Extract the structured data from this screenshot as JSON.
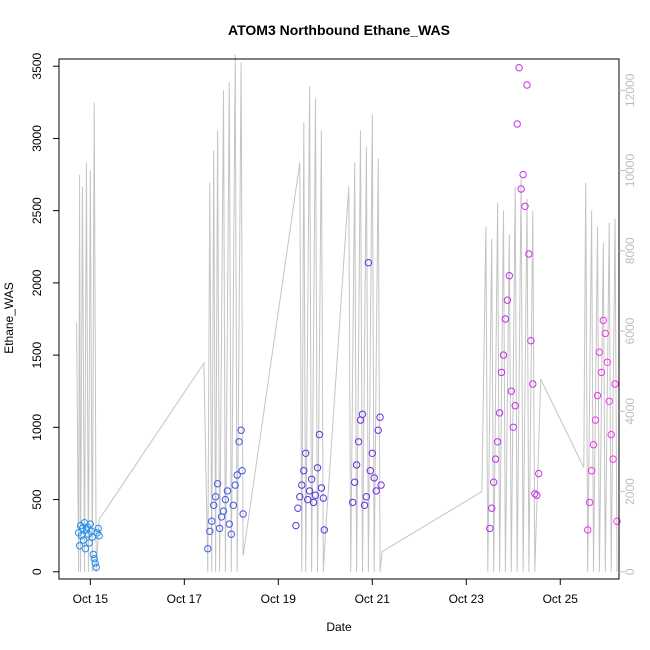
{
  "chart_data": {
    "type": "scatter",
    "title": "ATOM3 Northbound Ethane_WAS",
    "xlabel": "Date",
    "ylabel": "Ethane_WAS",
    "x_ticks": [
      "Oct 15",
      "Oct 17",
      "Oct 19",
      "Oct 21",
      "Oct 23",
      "Oct 25"
    ],
    "x_range": [
      "2017-10-14 08:00",
      "2017-10-26 06:00"
    ],
    "y_ticks": [
      0,
      500,
      1000,
      1500,
      2000,
      2500,
      3000,
      3500
    ],
    "ylim": [
      -50,
      3550
    ],
    "y2_ticks": [
      0,
      2000,
      4000,
      6000,
      8000,
      10000,
      12000
    ],
    "y2lim": [
      -180,
      12780
    ],
    "colors": {
      "start": "#1e9bf0",
      "mid": "#5a2be0",
      "end": "#ff33ee",
      "altitude_line": "#c4c4c4"
    },
    "series": [
      {
        "values": [
          [
            "2017-10-14 18:00",
            270
          ],
          [
            "2017-10-14 18:30",
            180
          ],
          [
            "2017-10-14 19:00",
            320
          ],
          [
            "2017-10-14 19:30",
            250
          ],
          [
            "2017-10-14 20:00",
            300
          ],
          [
            "2017-10-14 20:30",
            220
          ],
          [
            "2017-10-14 21:00",
            340
          ],
          [
            "2017-10-14 21:30",
            160
          ],
          [
            "2017-10-14 22:00",
            290
          ],
          [
            "2017-10-14 22:30",
            310
          ],
          [
            "2017-10-14 23:00",
            260
          ],
          [
            "2017-10-14 23:30",
            200
          ],
          [
            "2017-10-15 00:00",
            330
          ],
          [
            "2017-10-15 00:30",
            280
          ],
          [
            "2017-10-15 01:00",
            240
          ],
          [
            "2017-10-15 01:30",
            120
          ],
          [
            "2017-10-15 02:00",
            90
          ],
          [
            "2017-10-15 02:30",
            60
          ],
          [
            "2017-10-15 03:00",
            30
          ],
          [
            "2017-10-15 03:30",
            270
          ],
          [
            "2017-10-15 04:00",
            300
          ],
          [
            "2017-10-15 04:30",
            250
          ],
          [
            "2017-10-17 12:00",
            160
          ],
          [
            "2017-10-17 13:00",
            280
          ],
          [
            "2017-10-17 14:00",
            350
          ],
          [
            "2017-10-17 15:00",
            460
          ],
          [
            "2017-10-17 16:00",
            520
          ],
          [
            "2017-10-17 17:00",
            610
          ],
          [
            "2017-10-17 18:00",
            300
          ],
          [
            "2017-10-17 19:00",
            380
          ],
          [
            "2017-10-17 20:00",
            420
          ],
          [
            "2017-10-17 21:00",
            500
          ],
          [
            "2017-10-17 22:00",
            560
          ],
          [
            "2017-10-17 23:00",
            330
          ],
          [
            "2017-10-18 00:00",
            260
          ],
          [
            "2017-10-18 01:00",
            460
          ],
          [
            "2017-10-18 02:00",
            600
          ],
          [
            "2017-10-18 03:00",
            670
          ],
          [
            "2017-10-18 04:00",
            900
          ],
          [
            "2017-10-18 05:00",
            980
          ],
          [
            "2017-10-18 05:30",
            700
          ],
          [
            "2017-10-18 06:00",
            400
          ],
          [
            "2017-10-19 09:00",
            320
          ],
          [
            "2017-10-19 10:00",
            440
          ],
          [
            "2017-10-19 11:00",
            520
          ],
          [
            "2017-10-19 12:00",
            600
          ],
          [
            "2017-10-19 13:00",
            700
          ],
          [
            "2017-10-19 14:00",
            820
          ],
          [
            "2017-10-19 15:00",
            500
          ],
          [
            "2017-10-19 16:00",
            560
          ],
          [
            "2017-10-19 17:00",
            640
          ],
          [
            "2017-10-19 18:00",
            480
          ],
          [
            "2017-10-19 19:00",
            530
          ],
          [
            "2017-10-19 20:00",
            720
          ],
          [
            "2017-10-19 21:00",
            950
          ],
          [
            "2017-10-19 22:00",
            580
          ],
          [
            "2017-10-19 23:00",
            510
          ],
          [
            "2017-10-19 23:30",
            290
          ],
          [
            "2017-10-20 14:00",
            480
          ],
          [
            "2017-10-20 15:00",
            620
          ],
          [
            "2017-10-20 16:00",
            740
          ],
          [
            "2017-10-20 17:00",
            900
          ],
          [
            "2017-10-20 18:00",
            1050
          ],
          [
            "2017-10-20 19:00",
            1090
          ],
          [
            "2017-10-20 20:00",
            460
          ],
          [
            "2017-10-20 21:00",
            520
          ],
          [
            "2017-10-20 22:00",
            2140
          ],
          [
            "2017-10-20 23:00",
            700
          ],
          [
            "2017-10-21 00:00",
            820
          ],
          [
            "2017-10-21 01:00",
            650
          ],
          [
            "2017-10-21 02:00",
            560
          ],
          [
            "2017-10-21 03:00",
            980
          ],
          [
            "2017-10-21 04:00",
            1070
          ],
          [
            "2017-10-21 04:30",
            600
          ],
          [
            "2017-10-23 12:00",
            300
          ],
          [
            "2017-10-23 13:00",
            440
          ],
          [
            "2017-10-23 14:00",
            620
          ],
          [
            "2017-10-23 15:00",
            780
          ],
          [
            "2017-10-23 16:00",
            900
          ],
          [
            "2017-10-23 17:00",
            1100
          ],
          [
            "2017-10-23 18:00",
            1380
          ],
          [
            "2017-10-23 19:00",
            1500
          ],
          [
            "2017-10-23 20:00",
            1750
          ],
          [
            "2017-10-23 21:00",
            1880
          ],
          [
            "2017-10-23 22:00",
            2050
          ],
          [
            "2017-10-23 23:00",
            1250
          ],
          [
            "2017-10-24 00:00",
            1000
          ],
          [
            "2017-10-24 01:00",
            1150
          ],
          [
            "2017-10-24 02:00",
            3100
          ],
          [
            "2017-10-24 03:00",
            3490
          ],
          [
            "2017-10-24 04:00",
            2650
          ],
          [
            "2017-10-24 05:00",
            2750
          ],
          [
            "2017-10-24 06:00",
            2530
          ],
          [
            "2017-10-24 07:00",
            3370
          ],
          [
            "2017-10-24 08:00",
            2200
          ],
          [
            "2017-10-24 09:00",
            1600
          ],
          [
            "2017-10-24 10:00",
            1300
          ],
          [
            "2017-10-24 11:00",
            540
          ],
          [
            "2017-10-24 12:00",
            530
          ],
          [
            "2017-10-24 13:00",
            680
          ],
          [
            "2017-10-25 14:00",
            290
          ],
          [
            "2017-10-25 15:00",
            480
          ],
          [
            "2017-10-25 16:00",
            700
          ],
          [
            "2017-10-25 17:00",
            880
          ],
          [
            "2017-10-25 18:00",
            1050
          ],
          [
            "2017-10-25 19:00",
            1220
          ],
          [
            "2017-10-25 20:00",
            1520
          ],
          [
            "2017-10-25 21:00",
            1380
          ],
          [
            "2017-10-25 22:00",
            1740
          ],
          [
            "2017-10-25 23:00",
            1650
          ],
          [
            "2017-10-26 00:00",
            1450
          ],
          [
            "2017-10-26 01:00",
            1180
          ],
          [
            "2017-10-26 02:00",
            950
          ],
          [
            "2017-10-26 03:00",
            780
          ],
          [
            "2017-10-26 04:00",
            1300
          ],
          [
            "2017-10-26 05:00",
            350
          ]
        ]
      },
      {
        "axis": "right",
        "values": [
          [
            "2017-10-14 17:00",
            6200
          ],
          [
            "2017-10-14 18:00",
            0
          ],
          [
            "2017-10-14 18:30",
            9900
          ],
          [
            "2017-10-14 19:00",
            0
          ],
          [
            "2017-10-14 20:00",
            9600
          ],
          [
            "2017-10-14 21:00",
            0
          ],
          [
            "2017-10-14 22:00",
            10200
          ],
          [
            "2017-10-14 23:00",
            0
          ],
          [
            "2017-10-15 00:00",
            10000
          ],
          [
            "2017-10-15 01:00",
            0
          ],
          [
            "2017-10-15 02:00",
            11700
          ],
          [
            "2017-10-15 03:00",
            0
          ],
          [
            "2017-10-15 04:30",
            1300
          ],
          [
            "2017-10-17 10:00",
            5200
          ],
          [
            "2017-10-17 12:00",
            0
          ],
          [
            "2017-10-17 13:00",
            9700
          ],
          [
            "2017-10-17 14:00",
            0
          ],
          [
            "2017-10-17 15:00",
            10500
          ],
          [
            "2017-10-17 16:00",
            0
          ],
          [
            "2017-10-17 17:00",
            11000
          ],
          [
            "2017-10-17 18:00",
            0
          ],
          [
            "2017-10-17 20:00",
            12000
          ],
          [
            "2017-10-17 21:00",
            0
          ],
          [
            "2017-10-17 23:00",
            12200
          ],
          [
            "2017-10-18 00:00",
            0
          ],
          [
            "2017-10-18 02:00",
            12900
          ],
          [
            "2017-10-18 03:00",
            0
          ],
          [
            "2017-10-18 05:00",
            12700
          ],
          [
            "2017-10-18 06:00",
            400
          ],
          [
            "2017-10-19 11:00",
            10200
          ],
          [
            "2017-10-19 12:00",
            0
          ],
          [
            "2017-10-19 13:00",
            11200
          ],
          [
            "2017-10-19 14:00",
            0
          ],
          [
            "2017-10-19 16:00",
            12100
          ],
          [
            "2017-10-19 17:00",
            0
          ],
          [
            "2017-10-19 19:00",
            11800
          ],
          [
            "2017-10-19 20:00",
            0
          ],
          [
            "2017-10-19 22:00",
            11000
          ],
          [
            "2017-10-19 23:00",
            0
          ],
          [
            "2017-10-20 00:00",
            900
          ],
          [
            "2017-10-20 12:00",
            9600
          ],
          [
            "2017-10-20 13:00",
            0
          ],
          [
            "2017-10-20 15:00",
            10200
          ],
          [
            "2017-10-20 16:00",
            0
          ],
          [
            "2017-10-20 18:00",
            11000
          ],
          [
            "2017-10-20 19:00",
            0
          ],
          [
            "2017-10-20 21:00",
            10600
          ],
          [
            "2017-10-20 22:00",
            0
          ],
          [
            "2017-10-21 00:00",
            11400
          ],
          [
            "2017-10-21 01:00",
            0
          ],
          [
            "2017-10-21 03:00",
            10300
          ],
          [
            "2017-10-21 04:00",
            0
          ],
          [
            "2017-10-21 05:00",
            500
          ],
          [
            "2017-10-23 08:00",
            2000
          ],
          [
            "2017-10-23 10:00",
            8600
          ],
          [
            "2017-10-23 11:00",
            0
          ],
          [
            "2017-10-23 13:00",
            8300
          ],
          [
            "2017-10-23 14:00",
            0
          ],
          [
            "2017-10-23 16:00",
            9200
          ],
          [
            "2017-10-23 17:00",
            0
          ],
          [
            "2017-10-23 19:00",
            9000
          ],
          [
            "2017-10-23 20:00",
            0
          ],
          [
            "2017-10-23 22:00",
            8400
          ],
          [
            "2017-10-23 23:00",
            0
          ],
          [
            "2017-10-24 01:00",
            9600
          ],
          [
            "2017-10-24 02:00",
            0
          ],
          [
            "2017-10-24 04:00",
            9800
          ],
          [
            "2017-10-24 05:00",
            0
          ],
          [
            "2017-10-24 07:00",
            9300
          ],
          [
            "2017-10-24 08:00",
            0
          ],
          [
            "2017-10-24 10:00",
            9000
          ],
          [
            "2017-10-24 11:00",
            0
          ],
          [
            "2017-10-24 14:00",
            4800
          ],
          [
            "2017-10-25 12:00",
            2600
          ],
          [
            "2017-10-25 13:00",
            9700
          ],
          [
            "2017-10-25 14:00",
            0
          ],
          [
            "2017-10-25 16:00",
            9000
          ],
          [
            "2017-10-25 17:00",
            0
          ],
          [
            "2017-10-25 19:00",
            8600
          ],
          [
            "2017-10-25 20:00",
            0
          ],
          [
            "2017-10-25 22:00",
            8200
          ],
          [
            "2017-10-25 23:00",
            0
          ],
          [
            "2017-10-26 01:00",
            8700
          ],
          [
            "2017-10-26 02:00",
            0
          ],
          [
            "2017-10-26 04:00",
            8800
          ],
          [
            "2017-10-26 05:00",
            0
          ]
        ]
      }
    ]
  }
}
